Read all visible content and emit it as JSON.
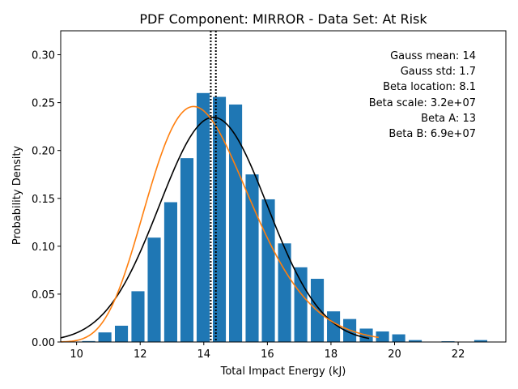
{
  "chart_data": {
    "type": "bar",
    "title": "PDF Component: MIRROR - Data Set: At Risk",
    "xlabel": "Total Impact Energy (kJ)",
    "ylabel": "Probability Density",
    "xlim": [
      9.5,
      23.5
    ],
    "ylim": [
      0,
      0.325
    ],
    "xticks": [
      10,
      12,
      14,
      16,
      18,
      20,
      22
    ],
    "xtick_labels": [
      "10",
      "12",
      "14",
      "16",
      "18",
      "20",
      "22"
    ],
    "yticks": [
      0.0,
      0.05,
      0.1,
      0.15,
      0.2,
      0.25,
      0.3
    ],
    "ytick_labels": [
      "0.00",
      "0.05",
      "0.10",
      "0.15",
      "0.20",
      "0.25",
      "0.30"
    ],
    "grid": false,
    "bar_width": 0.41,
    "bar_color": "#1f77b4",
    "bars": {
      "centers": [
        10.38,
        10.89,
        11.41,
        11.93,
        12.44,
        12.96,
        13.47,
        13.98,
        14.49,
        15.0,
        15.52,
        16.03,
        16.54,
        17.05,
        17.57,
        18.08,
        18.59,
        19.11,
        19.62,
        20.13,
        20.65,
        21.68,
        22.71
      ],
      "values": [
        0.001,
        0.01,
        0.017,
        0.053,
        0.109,
        0.146,
        0.192,
        0.26,
        0.256,
        0.248,
        0.175,
        0.149,
        0.103,
        0.078,
        0.066,
        0.032,
        0.024,
        0.014,
        0.011,
        0.008,
        0.002,
        0.0008,
        0.002
      ]
    },
    "series": [
      {
        "kind": "gauss",
        "color": "#000000",
        "mean": 14.3,
        "std": 1.7,
        "x_range": [
          9.5,
          19.2
        ]
      },
      {
        "kind": "beta",
        "color": "#ff7f0e",
        "location": 8.1,
        "a": 13,
        "x_range": [
          9.5,
          19.5
        ]
      }
    ],
    "vlines": [
      {
        "x": 14.22,
        "style": "dotted",
        "color": "#000000"
      },
      {
        "x": 14.38,
        "style": "dotted",
        "color": "#000000"
      }
    ],
    "annotations": [
      "Gauss mean: 14",
      "Gauss std: 1.7",
      "Beta location: 8.1",
      "Beta scale: 3.2e+07",
      "Beta A: 13",
      "Beta B: 6.9e+07"
    ]
  }
}
